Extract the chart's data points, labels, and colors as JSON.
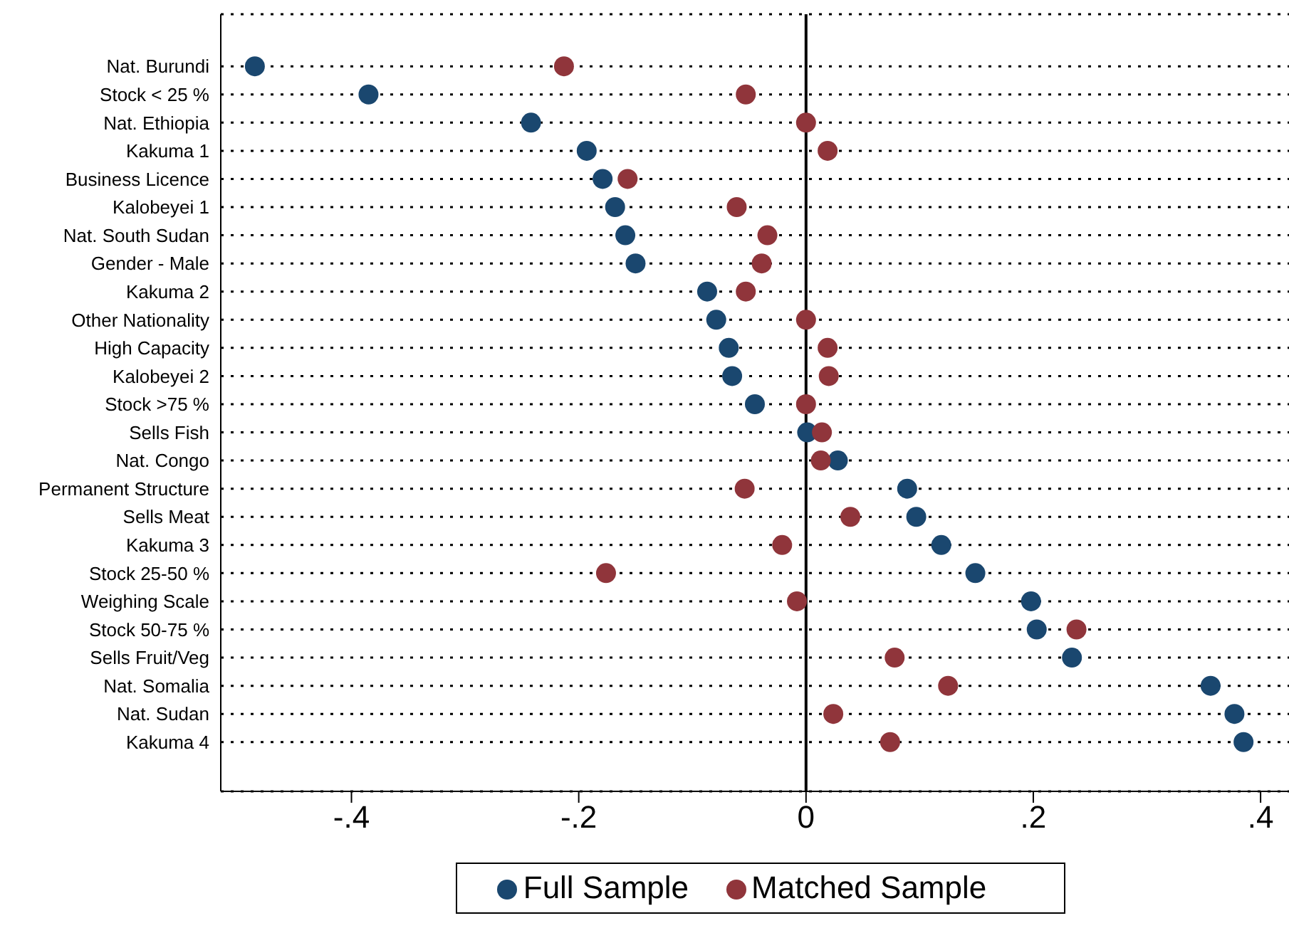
{
  "chart_data": {
    "type": "scatter",
    "orientation": "horizontal",
    "categories": [
      "Nat. Burundi",
      "Stock < 25 %",
      "Nat. Ethiopia",
      "Kakuma 1",
      "Business Licence",
      "Kalobeyei 1",
      "Nat. South Sudan",
      "Gender - Male",
      "Kakuma 2",
      "Other Nationality",
      "High Capacity",
      "Kalobeyei 2",
      "Stock >75 %",
      "Sells Fish",
      "Nat. Congo",
      "Permanent Structure",
      "Sells Meat",
      "Kakuma 3",
      "Stock 25-50 %",
      "Weighing Scale",
      "Stock 50-75 %",
      "Sells Fruit/Veg",
      "Nat. Somalia",
      "Nat. Sudan",
      "Kakuma 4"
    ],
    "series": [
      {
        "name": "Full Sample",
        "color": "#1a476f",
        "values": [
          -0.485,
          -0.385,
          -0.242,
          -0.193,
          -0.179,
          -0.168,
          -0.159,
          -0.15,
          -0.087,
          -0.079,
          -0.068,
          -0.065,
          -0.045,
          0.001,
          0.028,
          0.089,
          0.097,
          0.119,
          0.149,
          0.198,
          0.203,
          0.234,
          0.356,
          0.377,
          0.385
        ]
      },
      {
        "name": "Matched Sample",
        "color": "#90353b",
        "values": [
          -0.213,
          -0.053,
          0,
          0.019,
          -0.157,
          -0.061,
          -0.034,
          -0.039,
          -0.053,
          0,
          0.019,
          0.02,
          0,
          0.014,
          0.013,
          -0.054,
          0.039,
          -0.021,
          -0.176,
          -0.008,
          0.238,
          0.078,
          0.125,
          0.024,
          0.074
        ]
      }
    ],
    "xlim": [
      -0.515,
      0.425
    ],
    "xticks": [
      {
        "value": -0.4,
        "label": "-.4"
      },
      {
        "value": -0.2,
        "label": "-.2"
      },
      0,
      {
        "value": 0.2,
        "label": ".2"
      },
      {
        "value": 0.4,
        "label": ".4"
      }
    ],
    "ref_lines": [
      {
        "axis": "x",
        "value": 0,
        "color": "#000000",
        "line_style": "solid"
      }
    ],
    "grid": "y",
    "legend": "bottom",
    "marker": "circle"
  }
}
